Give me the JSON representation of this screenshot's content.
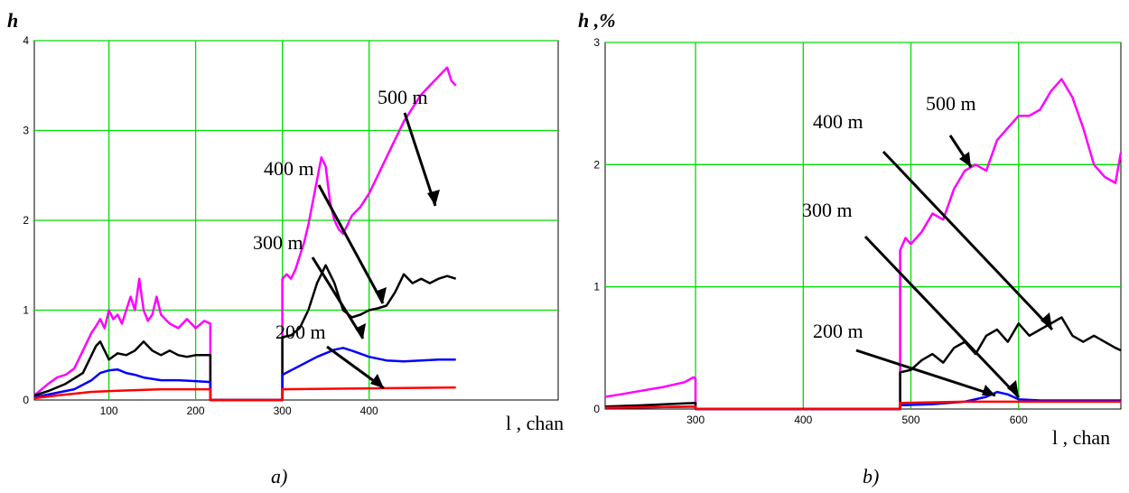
{
  "chart_data": [
    {
      "type": "line",
      "caption": "a)",
      "xlabel": "l , chan",
      "ylabel": "h",
      "xlim": [
        14,
        618
      ],
      "ylim": [
        0,
        4
      ],
      "xticks": [
        100,
        200,
        300,
        400
      ],
      "yticks": [
        0,
        1,
        2,
        3,
        4
      ],
      "grid": true,
      "series": [
        {
          "name": "500 m",
          "color": "#ff00ff",
          "x": [
            14,
            20,
            30,
            40,
            50,
            60,
            70,
            80,
            85,
            90,
            95,
            100,
            105,
            110,
            115,
            120,
            125,
            130,
            135,
            140,
            145,
            150,
            155,
            160,
            170,
            180,
            190,
            200,
            210,
            217,
            217,
            300,
            300,
            305,
            310,
            315,
            320,
            325,
            330,
            335,
            340,
            345,
            350,
            355,
            360,
            365,
            370,
            375,
            380,
            385,
            390,
            400,
            410,
            420,
            430,
            440,
            450,
            460,
            470,
            480,
            490,
            495,
            500
          ],
          "y": [
            0.05,
            0.1,
            0.18,
            0.25,
            0.28,
            0.35,
            0.55,
            0.75,
            0.82,
            0.9,
            0.8,
            1.0,
            0.9,
            0.95,
            0.85,
            1.0,
            1.15,
            1.0,
            1.35,
            1.0,
            0.88,
            0.95,
            1.15,
            0.95,
            0.85,
            0.8,
            0.9,
            0.8,
            0.88,
            0.85,
            0,
            0,
            1.35,
            1.4,
            1.35,
            1.45,
            1.6,
            1.75,
            1.95,
            2.2,
            2.45,
            2.7,
            2.6,
            2.2,
            2.0,
            1.9,
            1.85,
            1.95,
            2.05,
            2.1,
            2.15,
            2.3,
            2.5,
            2.7,
            2.9,
            3.1,
            3.25,
            3.4,
            3.5,
            3.6,
            3.7,
            3.55,
            3.5
          ]
        },
        {
          "name": "400 m",
          "color": "#000000",
          "x": [
            14,
            30,
            50,
            70,
            80,
            85,
            90,
            95,
            100,
            110,
            120,
            130,
            140,
            150,
            160,
            170,
            180,
            190,
            200,
            210,
            217,
            217,
            300,
            300,
            310,
            320,
            330,
            340,
            350,
            360,
            370,
            380,
            390,
            400,
            410,
            420,
            430,
            440,
            450,
            460,
            470,
            480,
            490,
            500
          ],
          "y": [
            0.05,
            0.1,
            0.18,
            0.3,
            0.5,
            0.6,
            0.65,
            0.55,
            0.45,
            0.52,
            0.5,
            0.55,
            0.65,
            0.55,
            0.5,
            0.55,
            0.5,
            0.48,
            0.5,
            0.5,
            0.5,
            0,
            0,
            0.7,
            0.72,
            0.8,
            1.0,
            1.3,
            1.5,
            1.3,
            1.0,
            0.92,
            0.95,
            1.0,
            1.02,
            1.05,
            1.2,
            1.4,
            1.3,
            1.35,
            1.3,
            1.35,
            1.38,
            1.35
          ]
        },
        {
          "name": "300 m",
          "color": "#0000ff",
          "x": [
            14,
            40,
            60,
            80,
            90,
            100,
            110,
            120,
            130,
            140,
            160,
            180,
            200,
            217,
            217,
            300,
            300,
            320,
            340,
            360,
            370,
            380,
            400,
            420,
            440,
            460,
            480,
            500
          ],
          "y": [
            0.03,
            0.08,
            0.12,
            0.22,
            0.3,
            0.33,
            0.34,
            0.3,
            0.28,
            0.25,
            0.22,
            0.22,
            0.21,
            0.2,
            0,
            0,
            0.28,
            0.38,
            0.48,
            0.56,
            0.58,
            0.55,
            0.48,
            0.44,
            0.43,
            0.44,
            0.45,
            0.45
          ]
        },
        {
          "name": "200 m",
          "color": "#ff0000",
          "x": [
            14,
            40,
            60,
            80,
            100,
            130,
            160,
            200,
            217,
            217,
            300,
            300,
            400,
            500
          ],
          "y": [
            0.02,
            0.05,
            0.07,
            0.09,
            0.1,
            0.11,
            0.12,
            0.12,
            0.12,
            0,
            0,
            0.12,
            0.13,
            0.14
          ]
        }
      ],
      "annotations": [
        "500 m",
        "400 m",
        "300 m",
        "200 m"
      ]
    },
    {
      "type": "line",
      "caption": "b)",
      "xlabel": "l , chan",
      "ylabel": "h ,%",
      "xlim": [
        216,
        695
      ],
      "ylim": [
        0,
        3
      ],
      "xticks": [
        300,
        400,
        500,
        600
      ],
      "yticks": [
        0,
        1,
        2,
        3
      ],
      "grid": true,
      "series": [
        {
          "name": "500 m",
          "color": "#ff00ff",
          "x": [
            216,
            230,
            250,
            270,
            290,
            298,
            300,
            300,
            490,
            490,
            495,
            500,
            510,
            520,
            530,
            540,
            550,
            560,
            570,
            580,
            590,
            600,
            610,
            620,
            630,
            640,
            650,
            660,
            670,
            680,
            690,
            695
          ],
          "y": [
            0.1,
            0.12,
            0.15,
            0.18,
            0.22,
            0.26,
            0.25,
            0,
            0,
            1.3,
            1.4,
            1.35,
            1.45,
            1.6,
            1.55,
            1.8,
            1.95,
            2.0,
            1.95,
            2.2,
            2.3,
            2.4,
            2.4,
            2.45,
            2.6,
            2.7,
            2.55,
            2.3,
            2.0,
            1.9,
            1.85,
            2.1
          ]
        },
        {
          "name": "400 m",
          "color": "#000000",
          "x": [
            216,
            250,
            300,
            300,
            490,
            490,
            500,
            510,
            520,
            530,
            540,
            550,
            560,
            570,
            580,
            590,
            600,
            610,
            620,
            630,
            640,
            650,
            660,
            670,
            680,
            690,
            695
          ],
          "y": [
            0.02,
            0.03,
            0.05,
            0,
            0,
            0.3,
            0.32,
            0.4,
            0.45,
            0.38,
            0.5,
            0.55,
            0.45,
            0.6,
            0.65,
            0.55,
            0.7,
            0.6,
            0.65,
            0.7,
            0.75,
            0.6,
            0.55,
            0.6,
            0.55,
            0.5,
            0.48
          ]
        },
        {
          "name": "300 m",
          "color": "#0000ff",
          "x": [
            216,
            300,
            300,
            490,
            490,
            520,
            550,
            570,
            580,
            590,
            600,
            620,
            650,
            695
          ],
          "y": [
            0.01,
            0.02,
            0,
            0,
            0.03,
            0.04,
            0.06,
            0.1,
            0.14,
            0.12,
            0.08,
            0.07,
            0.07,
            0.07
          ]
        },
        {
          "name": "200 m",
          "color": "#ff0000",
          "x": [
            216,
            300,
            300,
            490,
            490,
            550,
            600,
            650,
            695
          ],
          "y": [
            0.01,
            0.02,
            0,
            0,
            0.05,
            0.06,
            0.06,
            0.06,
            0.06
          ]
        }
      ],
      "annotations": [
        "500 m",
        "400 m",
        "300 m",
        "200 m"
      ]
    }
  ]
}
